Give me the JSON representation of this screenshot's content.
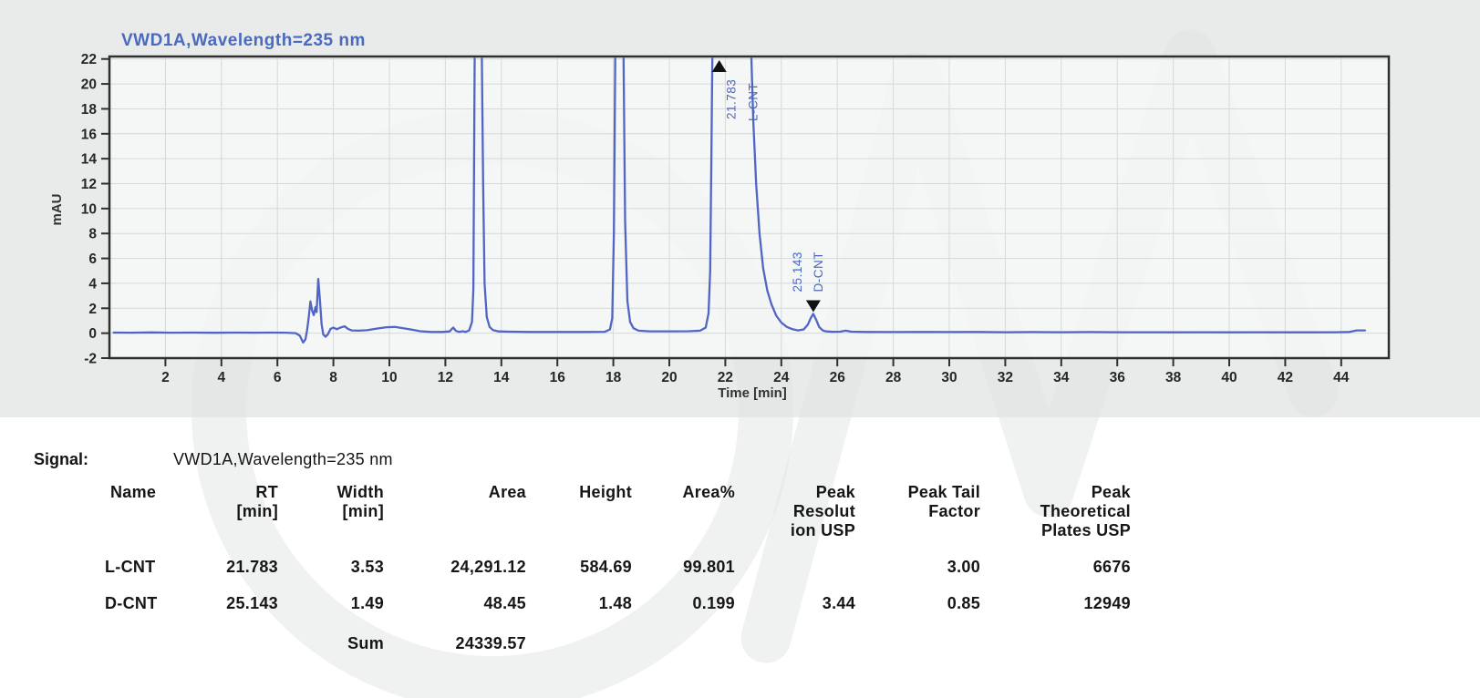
{
  "chart_data": {
    "type": "line",
    "title": "VWD1A,Wavelength=235 nm",
    "xlabel": "Time [min]",
    "ylabel": "mAU",
    "xlim": [
      0,
      45.7
    ],
    "ylim": [
      -2,
      22.2
    ],
    "grid": true,
    "legend": "none",
    "trace_color": "#5166c4",
    "title_color": "#4a6abe",
    "x_ticks": [
      2,
      4,
      6,
      8,
      10,
      12,
      14,
      16,
      18,
      20,
      22,
      24,
      26,
      28,
      30,
      32,
      34,
      36,
      38,
      40,
      42,
      44
    ],
    "y_ticks": [
      -2,
      0,
      2,
      4,
      6,
      8,
      10,
      12,
      14,
      16,
      18,
      20,
      22
    ],
    "series": [
      {
        "name": "VWD1A,Wavelength=235 nm",
        "points": [
          [
            0.15,
            0.05
          ],
          [
            0.8,
            0.04
          ],
          [
            1.5,
            0.06
          ],
          [
            2.2,
            0.04
          ],
          [
            3.0,
            0.05
          ],
          [
            3.8,
            0.03
          ],
          [
            4.5,
            0.05
          ],
          [
            5.2,
            0.04
          ],
          [
            5.8,
            0.05
          ],
          [
            6.3,
            0.04
          ],
          [
            6.65,
            0.0
          ],
          [
            6.8,
            -0.2
          ],
          [
            6.92,
            -0.75
          ],
          [
            7.0,
            -0.5
          ],
          [
            7.06,
            0.2
          ],
          [
            7.12,
            1.3
          ],
          [
            7.18,
            2.55
          ],
          [
            7.24,
            1.8
          ],
          [
            7.3,
            1.45
          ],
          [
            7.36,
            2.1
          ],
          [
            7.4,
            1.7
          ],
          [
            7.46,
            4.35
          ],
          [
            7.52,
            2.6
          ],
          [
            7.58,
            0.7
          ],
          [
            7.64,
            -0.1
          ],
          [
            7.72,
            -0.28
          ],
          [
            7.8,
            -0.1
          ],
          [
            7.9,
            0.35
          ],
          [
            8.0,
            0.45
          ],
          [
            8.12,
            0.32
          ],
          [
            8.25,
            0.45
          ],
          [
            8.4,
            0.55
          ],
          [
            8.52,
            0.35
          ],
          [
            8.65,
            0.22
          ],
          [
            8.9,
            0.2
          ],
          [
            9.2,
            0.24
          ],
          [
            9.6,
            0.38
          ],
          [
            9.9,
            0.48
          ],
          [
            10.2,
            0.5
          ],
          [
            10.5,
            0.4
          ],
          [
            10.8,
            0.28
          ],
          [
            11.1,
            0.16
          ],
          [
            11.5,
            0.1
          ],
          [
            11.9,
            0.1
          ],
          [
            12.15,
            0.14
          ],
          [
            12.28,
            0.45
          ],
          [
            12.38,
            0.18
          ],
          [
            12.5,
            0.1
          ],
          [
            12.62,
            0.16
          ],
          [
            12.72,
            0.1
          ],
          [
            12.85,
            0.22
          ],
          [
            12.95,
            0.9
          ],
          [
            13.0,
            3.5
          ],
          [
            13.05,
            23
          ],
          [
            13.3,
            23
          ],
          [
            13.35,
            12
          ],
          [
            13.4,
            4
          ],
          [
            13.48,
            1.3
          ],
          [
            13.58,
            0.5
          ],
          [
            13.7,
            0.25
          ],
          [
            13.9,
            0.14
          ],
          [
            14.3,
            0.12
          ],
          [
            15,
            0.1
          ],
          [
            16,
            0.1
          ],
          [
            17,
            0.1
          ],
          [
            17.7,
            0.11
          ],
          [
            17.88,
            0.3
          ],
          [
            17.96,
            1.2
          ],
          [
            18.02,
            8
          ],
          [
            18.07,
            23
          ],
          [
            18.36,
            23
          ],
          [
            18.42,
            9
          ],
          [
            18.5,
            2.6
          ],
          [
            18.6,
            0.9
          ],
          [
            18.72,
            0.4
          ],
          [
            18.9,
            0.2
          ],
          [
            19.3,
            0.15
          ],
          [
            20,
            0.15
          ],
          [
            20.7,
            0.16
          ],
          [
            21.1,
            0.2
          ],
          [
            21.3,
            0.45
          ],
          [
            21.4,
            1.6
          ],
          [
            21.46,
            5
          ],
          [
            21.5,
            14
          ],
          [
            21.54,
            23
          ],
          [
            22.92,
            23
          ],
          [
            23.0,
            17
          ],
          [
            23.1,
            12
          ],
          [
            23.22,
            8
          ],
          [
            23.35,
            5.2
          ],
          [
            23.5,
            3.4
          ],
          [
            23.65,
            2.3
          ],
          [
            23.82,
            1.4
          ],
          [
            24.0,
            0.85
          ],
          [
            24.2,
            0.5
          ],
          [
            24.4,
            0.32
          ],
          [
            24.6,
            0.22
          ],
          [
            24.8,
            0.3
          ],
          [
            24.95,
            0.7
          ],
          [
            25.05,
            1.2
          ],
          [
            25.14,
            1.55
          ],
          [
            25.24,
            1.1
          ],
          [
            25.35,
            0.5
          ],
          [
            25.48,
            0.22
          ],
          [
            25.6,
            0.14
          ],
          [
            25.85,
            0.11
          ],
          [
            26.1,
            0.12
          ],
          [
            26.3,
            0.2
          ],
          [
            26.5,
            0.12
          ],
          [
            27,
            0.1
          ],
          [
            28,
            0.09
          ],
          [
            29,
            0.1
          ],
          [
            30,
            0.09
          ],
          [
            31,
            0.1
          ],
          [
            32,
            0.08
          ],
          [
            33,
            0.09
          ],
          [
            34,
            0.08
          ],
          [
            35,
            0.09
          ],
          [
            36,
            0.08
          ],
          [
            37,
            0.08
          ],
          [
            38,
            0.07
          ],
          [
            39,
            0.08
          ],
          [
            40,
            0.07
          ],
          [
            41,
            0.08
          ],
          [
            42,
            0.07
          ],
          [
            43,
            0.07
          ],
          [
            43.8,
            0.08
          ],
          [
            44.3,
            0.1
          ],
          [
            44.55,
            0.22
          ],
          [
            44.85,
            0.22
          ]
        ]
      }
    ],
    "annotated_peaks": [
      {
        "name": "L-CNT",
        "rt": 21.783,
        "rt_label": "21.783",
        "marker": "up"
      },
      {
        "name": "D-CNT",
        "rt": 25.143,
        "rt_label": "25.143",
        "marker": "down",
        "apex_mau": 1.55
      }
    ]
  },
  "signal": {
    "label": "Signal:",
    "value": "VWD1A,Wavelength=235 nm"
  },
  "peak_table": {
    "headers": [
      "Name",
      "RT\n[min]",
      "Width\n[min]",
      "Area",
      "Height",
      "Area%",
      "Peak\nResolut\nion USP",
      "Peak Tail\nFactor",
      "Peak\nTheoretical\nPlates USP"
    ],
    "rows": [
      [
        "L-CNT",
        "21.783",
        "3.53",
        "24,291.12",
        "584.69",
        "99.801",
        "",
        "3.00",
        "6676"
      ],
      [
        "D-CNT",
        "25.143",
        "1.49",
        "48.45",
        "1.48",
        "0.199",
        "3.44",
        "0.85",
        "12949"
      ],
      [
        "",
        "",
        "Sum",
        "24339.57",
        "",
        "",
        "",
        "",
        ""
      ]
    ]
  }
}
